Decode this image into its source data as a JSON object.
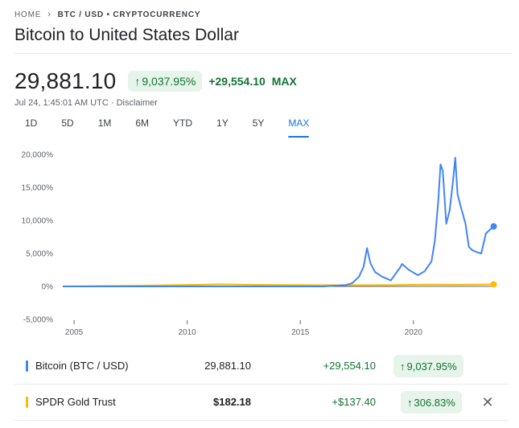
{
  "breadcrumb": {
    "home": "HOME",
    "current": "BTC / USD • CRYPTOCURRENCY"
  },
  "header": {
    "title": "Bitcoin to United States Dollar"
  },
  "quote": {
    "price": "29,881.10",
    "percent_change": "9,037.95%",
    "absolute_change": "+29,554.10",
    "span": "MAX",
    "timestamp": "Jul 24, 1:45:01 AM UTC",
    "separator": " · ",
    "disclaimer": "Disclaimer"
  },
  "range_tabs": [
    {
      "label": "1D"
    },
    {
      "label": "5D"
    },
    {
      "label": "1M"
    },
    {
      "label": "6M"
    },
    {
      "label": "YTD"
    },
    {
      "label": "1Y"
    },
    {
      "label": "5Y"
    },
    {
      "label": "MAX",
      "active": true
    }
  ],
  "chart_data": {
    "type": "line",
    "title": "",
    "xlabel": "",
    "ylabel": "",
    "x_ticks": [
      "2005",
      "2010",
      "2015",
      "2020"
    ],
    "y_ticks": [
      "20,000%",
      "15,000%",
      "10,000%",
      "5,000%",
      "0%",
      "-5,000%"
    ],
    "xlim": [
      2004.5,
      2023.6
    ],
    "ylim": [
      -5000,
      20000
    ],
    "grid": false,
    "series": [
      {
        "name": "Bitcoin (BTC / USD)",
        "color": "#4285f4",
        "x": [
          2004.5,
          2016.0,
          2017.0,
          2017.3,
          2017.6,
          2017.8,
          2017.95,
          2018.1,
          2018.3,
          2018.6,
          2019.0,
          2019.4,
          2019.5,
          2019.8,
          2020.2,
          2020.5,
          2020.8,
          2020.95,
          2021.1,
          2021.2,
          2021.3,
          2021.45,
          2021.6,
          2021.75,
          2021.85,
          2021.95,
          2022.1,
          2022.3,
          2022.45,
          2022.6,
          2022.8,
          2023.0,
          2023.2,
          2023.35,
          2023.55
        ],
        "y": [
          0,
          0,
          200,
          500,
          1500,
          3000,
          5800,
          3500,
          2200,
          1500,
          900,
          2800,
          3400,
          2500,
          1700,
          2300,
          3800,
          7000,
          13000,
          18500,
          17500,
          9500,
          11500,
          16000,
          19500,
          14000,
          12000,
          9500,
          6000,
          5500,
          5200,
          5000,
          8000,
          8500,
          9100
        ]
      },
      {
        "name": "SPDR Gold Trust",
        "color": "#fbbc04",
        "x": [
          2004.5,
          2008.0,
          2011.5,
          2013.5,
          2016.0,
          2019.0,
          2020.6,
          2022.0,
          2023.55
        ],
        "y": [
          0,
          120,
          320,
          230,
          180,
          200,
          280,
          240,
          307
        ]
      }
    ]
  },
  "comparisons": [
    {
      "name": "Bitcoin (BTC / USD)",
      "color": "#4285f4",
      "last": "29,881.10",
      "change": "+29,554.10",
      "percent": "9,037.95%"
    },
    {
      "name": "SPDR Gold Trust",
      "color": "#fbbc04",
      "last": "$182.18",
      "change": "+$137.40",
      "percent": "306.83%",
      "removable": true
    }
  ],
  "icons": {
    "breadcrumb_separator": "chevron-right-icon",
    "up_arrow": "arrow-up-icon",
    "remove": "close-icon"
  }
}
